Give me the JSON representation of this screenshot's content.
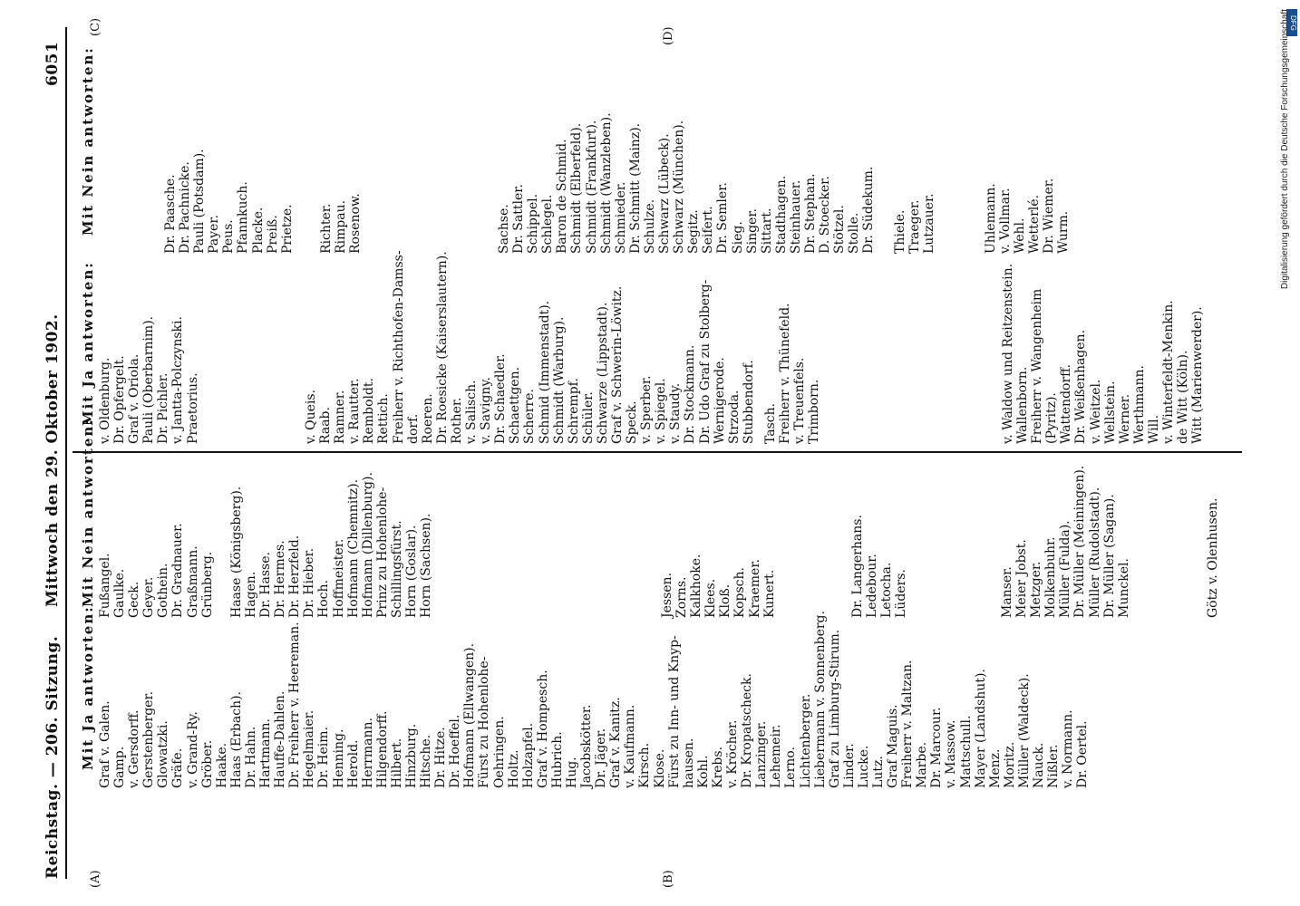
{
  "header": {
    "left": "Reichstag. — 206. Sitzung.",
    "center": "Mittwoch den 29. Oktober 1902.",
    "page_number": "6051"
  },
  "credit": "Digitalisierung gefördert durch die Deutsche Forschungsgemeinschaft",
  "badge": "DFG",
  "markers": {
    "a": "(A)",
    "b": "(B)",
    "c": "(C)",
    "d": "(D)"
  },
  "col1": {
    "heading": "Mit Ja antworten:",
    "items": [
      "Graf v. Galen.",
      "Gamp.",
      "v. Gersdorff.",
      "Gerstenberger.",
      "Glowatzki.",
      "Gräfe.",
      "v. Grand-Ry.",
      "Gröber.",
      "Haake.",
      "Haas (Erbach).",
      "Dr. Hahn.",
      "Hartmann.",
      "Hauffe-Dahlen.",
      "Dr. Freiherr v. Heereman.",
      "Hegelmaier.",
      "Dr. Heim.",
      "Henning.",
      "Herold.",
      "Herrmann.",
      "Hilgendorff.",
      "Hilbert.",
      "Hinzburg.",
      "Hitsche.",
      "Dr. Hitze.",
      "Dr. Hoeffel.",
      "Hofmann (Ellwangen).",
      "Fürst zu Hohenlohe-",
      "Oehringen.",
      "Holtz.",
      "Holzapfel.",
      "Graf v. Hompesch.",
      "Hubrich.",
      "Hug.",
      "Jacobskötter.",
      "Dr. Jäger.",
      "Graf v. Kanitz.",
      "v. Kaufmann.",
      "Kirsch.",
      "Klose.",
      "Fürst zu Inn- und Knyp-",
      "hausen.",
      "Kohl.",
      "Krebs.",
      "v. Kröcher.",
      "Dr. Kropatscheck.",
      "Lanzinger.",
      "Lehemeir.",
      "Lerno.",
      "Lichtenberger.",
      "Liebermann v. Sonnenberg.",
      "Graf zu Limburg-Stirum.",
      "Linder.",
      "Lucke.",
      "Lutz.",
      "Graf Maguis.",
      "Freiherr v. Maltzan.",
      "Marbe.",
      "Dr. Marcour.",
      "v. Massow.",
      "Mattschull.",
      "Mayer (Landshut).",
      "Menz.",
      "Moritz.",
      "Müller (Waldeck).",
      "Nauck.",
      "Nißler.",
      "v. Normann.",
      "Dr. Oertel."
    ]
  },
  "col2": {
    "heading": "Mit Nein antworten:",
    "items": [
      "Fußangel.",
      "Gaulke.",
      "Geck.",
      "Geyer.",
      "Gothein.",
      "Dr. Gradnauer.",
      "Graßmann.",
      "Grünberg.",
      "",
      "Haase (Königsberg).",
      "Hagen.",
      "Dr. Hasse.",
      "Dr. Hermes.",
      "Dr. Herzfeld.",
      "Dr. Hieber.",
      "Hoch.",
      "Hoffmeister.",
      "Hofmann (Chemnitz).",
      "Hofmann (Dillenburg).",
      "Prinz zu Hohenlohe-",
      "Schillingsfürst.",
      "Horn (Goslar).",
      "Horn (Sachsen)."
    ],
    "items2": [
      "Jessen.",
      "Zorns.",
      "Kalkhoke.",
      "Klees.",
      "Kloß.",
      "Kopsch.",
      "Kraemer.",
      "Kunert."
    ],
    "items3": [
      "Dr. Langerhans.",
      "Ledebour.",
      "Letocha.",
      "Lüders."
    ],
    "items4": [
      "Manser.",
      "Meier Jobst.",
      "Metzger.",
      "Molkenbuhr.",
      "Müller (Fulda).",
      "Dr. Müller (Meiningen).",
      "Müller (Rudolstadt).",
      "Dr. Müller (Sagan).",
      "Munckel."
    ],
    "items5": [
      "Götz v. Olenhusen."
    ]
  },
  "col3": {
    "heading": "Mit Ja antworten:",
    "items": [
      "v. Oldenburg.",
      "Dr. Opfergelt.",
      "Graf v. Oriola.",
      "Pauli (Oberbarnim).",
      "Dr. Pichler.",
      "v. Jantta-Polczynski.",
      "Praetorius."
    ],
    "items2": [
      "v. Queis.",
      "Raab.",
      "Ramner.",
      "v. Rautter.",
      "Remboldt.",
      "Rettich.",
      "Freiherr v. Richthofen-Damss-",
      "dorf.",
      "Roeren.",
      "Dr. Roesicke (Kaiserslautern).",
      "Rother.",
      "v. Salisch.",
      "v. Savigny.",
      "Dr. Schaedler.",
      "Schaettgen.",
      "Scherre.",
      "Schmid (Immenstadt).",
      "Schmidt (Warburg).",
      "Schrempf.",
      "Schüler.",
      "Schwarze (Lippstadt).",
      "Graf v. Schwerin-Löwitz.",
      "Speck.",
      "v. Sperber.",
      "v. Spiegel.",
      "v. Staudy.",
      "Dr. Stockmann.",
      "Dr. Udo Graf zu Stolberg-",
      "Wernigerode.",
      "Strzoda.",
      "Stubbendorf."
    ],
    "items3": [
      "Tasch.",
      "Freiherr v. Thünefeld.",
      "v. Treuenfels.",
      "Trimborn."
    ],
    "items4": [
      "v. Waldow und Reitzenstein.",
      "Wallenborn.",
      "Freiherr v. Wangenheim",
      "(Pyritz).",
      "Wattendorff.",
      "Dr. Weißenhagen.",
      "v. Weitzel.",
      "Wellstein.",
      "Werner.",
      "Werthmann.",
      "Will.",
      "v. Winterfeldt-Menkin.",
      "de Witt (Köln).",
      "Witt (Marienwerder)."
    ]
  },
  "col4": {
    "heading": "Mit Nein antworten:",
    "items": [
      "Dr. Paasche.",
      "Dr. Pachnicke.",
      "Pauli (Potsdam).",
      "Payer.",
      "Peus.",
      "Pfannkuch.",
      "Placke.",
      "Preiß.",
      "Prietze."
    ],
    "items2": [
      "Richter.",
      "Rimpau.",
      "Rosenow."
    ],
    "items3": [
      "Sachse.",
      "Dr. Sattler.",
      "Schippel.",
      "Schlegel.",
      "Baron de Schmid.",
      "Schmidt (Elberfeld).",
      "Schmidt (Frankfurt).",
      "Schmidt (Wanzleben).",
      "Schmieder.",
      "Dr. Schmitt (Mainz).",
      "Schulze.",
      "Schwarz (Lübeck).",
      "Schwarz (München).",
      "Segitz.",
      "Seifert.",
      "Dr. Semler.",
      "Sieg.",
      "Singer.",
      "Sittart.",
      "Stadthagen.",
      "Steinhauer.",
      "Dr. Stephan.",
      "D. Stoecker.",
      "Stötzel.",
      "Stolle.",
      "Dr. Südekum."
    ],
    "items4": [
      "Thiele.",
      "Traeger.",
      "Lutzauer."
    ],
    "items5": [
      "Uhlemann.",
      "v. Vollmar.",
      "Wehl.",
      "Wetterlé.",
      "Dr. Wiemer.",
      "Wurm."
    ]
  }
}
